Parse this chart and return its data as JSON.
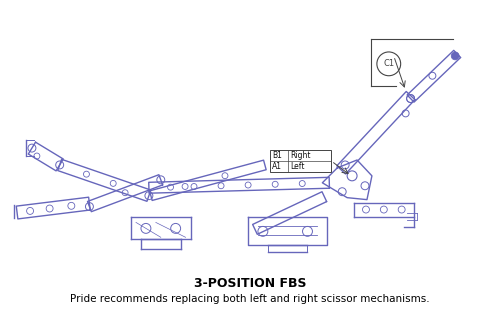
{
  "title": "3-POSITION FBS",
  "subtitle": "Pride recommends replacing both left and right scissor mechanisms.",
  "title_fontsize": 9,
  "subtitle_fontsize": 7.5,
  "line_color": "#6666bb",
  "dark_color": "#444444",
  "background_color": "#ffffff",
  "label_A1": "A1",
  "label_B1": "B1",
  "label_left": "Left",
  "label_right": "Right",
  "label_C1": "C1"
}
